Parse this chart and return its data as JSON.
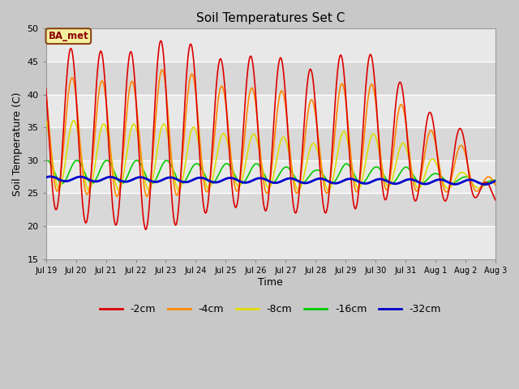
{
  "title": "Soil Temperatures Set C",
  "xlabel": "Time",
  "ylabel": "Soil Temperature (C)",
  "ylim": [
    15,
    50
  ],
  "yticks": [
    15,
    20,
    25,
    30,
    35,
    40,
    45,
    50
  ],
  "fig_bg": "#c8c8c8",
  "plot_bg": "#e8e8e8",
  "band_light": "#e8e8e8",
  "band_dark": "#d8d8d8",
  "legend_label": "BA_met",
  "series": {
    "-2cm": {
      "color": "#dd0000",
      "lw": 1.2
    },
    "-4cm": {
      "color": "#ff8800",
      "lw": 1.2
    },
    "-8cm": {
      "color": "#dddd00",
      "lw": 1.2
    },
    "-16cm": {
      "color": "#00cc00",
      "lw": 1.2
    },
    "-32cm": {
      "color": "#0000cc",
      "lw": 2.0
    }
  },
  "x_tick_labels": [
    "Jul 19",
    "Jul 20",
    "Jul 21",
    "Jul 22",
    "Jul 23",
    "Jul 24",
    "Jul 25",
    "Jul 26",
    "Jul 27",
    "Jul 28",
    "Jul 29",
    "Jul 30",
    "Jul 31",
    "Aug 1",
    "Aug 2",
    "Aug 3"
  ],
  "n_days": 16,
  "points_per_day": 144,
  "peak_2cm": [
    47.0,
    47.0,
    46.5,
    46.5,
    48.5,
    47.5,
    45.0,
    46.0,
    45.5,
    43.5,
    46.5,
    46.0,
    41.0,
    36.5,
    34.5,
    24.0
  ],
  "trough_2cm": [
    23.5,
    20.5,
    20.5,
    19.5,
    19.5,
    21.5,
    23.0,
    22.5,
    22.0,
    22.0,
    22.0,
    24.0,
    24.0,
    23.5,
    24.5,
    24.0
  ],
  "peak_4cm": [
    43.0,
    42.5,
    42.0,
    42.0,
    44.0,
    43.0,
    41.0,
    41.0,
    40.5,
    39.0,
    42.0,
    41.5,
    38.0,
    34.0,
    32.0,
    26.5
  ],
  "trough_4cm": [
    25.5,
    25.0,
    24.5,
    24.5,
    24.5,
    25.0,
    25.5,
    25.0,
    25.0,
    25.0,
    25.0,
    25.5,
    25.5,
    25.0,
    25.5,
    25.0
  ],
  "peak_8cm": [
    36.5,
    36.0,
    35.5,
    35.5,
    35.5,
    35.0,
    34.0,
    34.0,
    33.5,
    32.5,
    34.5,
    34.0,
    32.5,
    30.0,
    28.0,
    26.5
  ],
  "trough_8cm": [
    26.0,
    25.5,
    25.5,
    25.5,
    25.5,
    25.5,
    26.0,
    26.0,
    25.5,
    25.5,
    25.5,
    26.0,
    26.0,
    25.5,
    26.0,
    25.5
  ],
  "peak_16cm": [
    30.0,
    30.0,
    30.0,
    30.0,
    30.0,
    29.5,
    29.5,
    29.5,
    29.0,
    28.5,
    29.5,
    29.0,
    29.0,
    28.0,
    27.5,
    27.0
  ],
  "trough_16cm": [
    26.5,
    26.5,
    26.5,
    26.5,
    26.5,
    26.5,
    26.5,
    26.5,
    26.5,
    26.5,
    26.5,
    26.5,
    26.5,
    26.5,
    26.5,
    26.5
  ],
  "phase_2cm": 0.58,
  "phase_4cm": 0.62,
  "phase_8cm": 0.68,
  "phase_16cm": 0.78,
  "base_32cm": 27.2,
  "amp_32cm": 0.35,
  "phase_32cm": 0.9,
  "trend_32cm": -0.035
}
